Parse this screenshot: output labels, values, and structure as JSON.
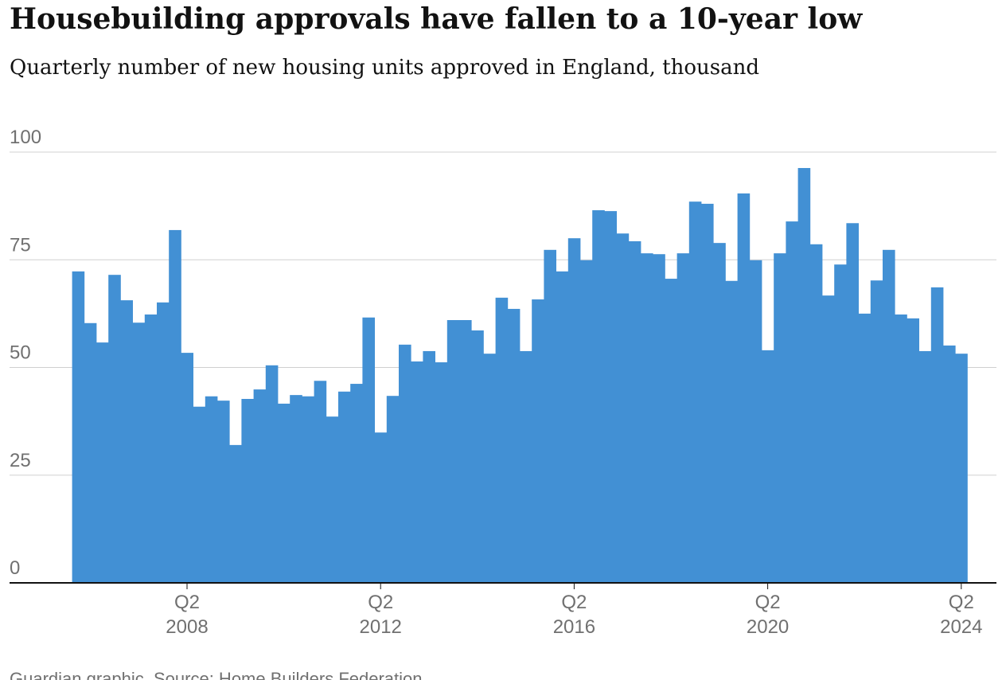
{
  "chart_data": {
    "type": "bar",
    "title": "Housebuilding approvals have fallen to a 10-year low",
    "subtitle": "Quarterly number of new housing units approved in England, thousand",
    "source": "Guardian graphic. Source: Home Builders Federation",
    "categories": [
      null,
      null,
      null,
      null,
      null,
      null,
      null,
      null,
      null,
      "Q2",
      null,
      null,
      null,
      null,
      null,
      null,
      null,
      null,
      null,
      null,
      null,
      null,
      null,
      null,
      null,
      "Q2",
      null,
      null,
      null,
      null,
      null,
      null,
      null,
      null,
      null,
      null,
      null,
      null,
      null,
      null,
      null,
      "Q2",
      null,
      null,
      null,
      null,
      null,
      null,
      null,
      null,
      null,
      null,
      null,
      null,
      null,
      null,
      null,
      "Q2",
      null,
      null,
      null,
      null,
      null,
      null,
      null,
      null,
      null,
      null,
      null,
      null,
      null,
      null,
      null,
      "Q2"
    ],
    "category_years": [
      null,
      null,
      null,
      null,
      null,
      null,
      null,
      null,
      null,
      "2008",
      null,
      null,
      null,
      null,
      null,
      null,
      null,
      null,
      null,
      null,
      null,
      null,
      null,
      null,
      null,
      "2012",
      null,
      null,
      null,
      null,
      null,
      null,
      null,
      null,
      null,
      null,
      null,
      null,
      null,
      null,
      null,
      "2016",
      null,
      null,
      null,
      null,
      null,
      null,
      null,
      null,
      null,
      null,
      null,
      null,
      null,
      null,
      null,
      "2020",
      null,
      null,
      null,
      null,
      null,
      null,
      null,
      null,
      null,
      null,
      null,
      null,
      null,
      null,
      null,
      "2024"
    ],
    "values": [
      72.3,
      60.3,
      55.8,
      71.5,
      65.6,
      60.4,
      62.3,
      65.1,
      81.9,
      53.4,
      40.9,
      43.3,
      42.3,
      32.0,
      42.7,
      44.9,
      50.5,
      41.6,
      43.6,
      43.3,
      46.9,
      38.6,
      44.4,
      46.2,
      61.6,
      34.9,
      43.4,
      55.3,
      51.4,
      53.8,
      51.2,
      61.0,
      61.0,
      58.6,
      53.2,
      66.2,
      63.6,
      53.8,
      65.8,
      77.3,
      72.3,
      80.0,
      74.9,
      86.5,
      86.3,
      81.1,
      79.3,
      76.5,
      76.3,
      70.6,
      76.5,
      88.5,
      88.0,
      78.9,
      70.1,
      90.4,
      74.9,
      54.0,
      76.5,
      83.9,
      96.3,
      78.6,
      66.7,
      73.9,
      83.5,
      62.5,
      70.2,
      77.3,
      62.3,
      61.4,
      53.8,
      68.6,
      55.1,
      53.2
    ],
    "color": "#4290d4",
    "ylim": [
      0,
      100
    ],
    "yticks": [
      0,
      25,
      50,
      75,
      100
    ],
    "grid": true
  }
}
